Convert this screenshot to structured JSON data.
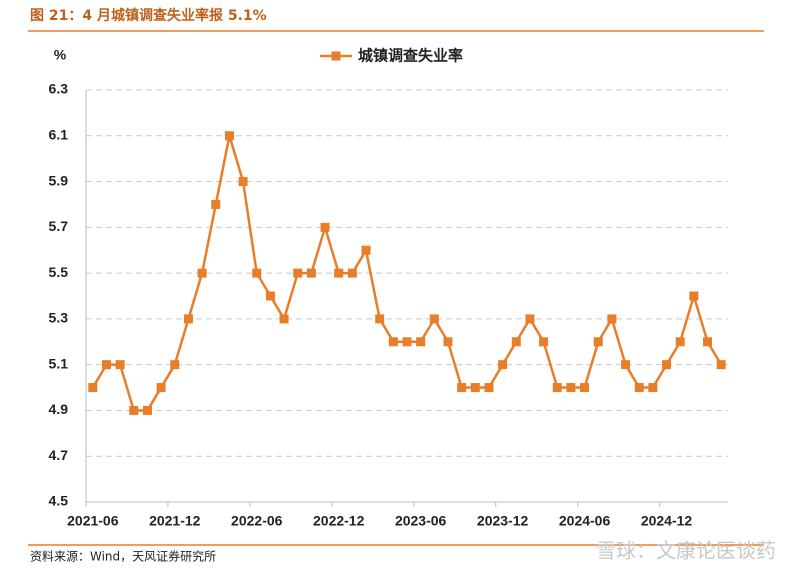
{
  "chart_data": {
    "type": "line",
    "title": "图 21：4 月城镇调查失业率报 5.1%",
    "y_unit": "%",
    "source": "资料来源：Wind，天风证券研究所",
    "watermark": "雪球：文康论医谈药",
    "categories": [
      "2021-06",
      null,
      null,
      null,
      null,
      null,
      "2021-12",
      null,
      null,
      null,
      null,
      null,
      "2022-06",
      null,
      null,
      null,
      null,
      null,
      "2022-12",
      null,
      null,
      null,
      null,
      null,
      "2023-06",
      null,
      null,
      null,
      null,
      null,
      "2023-12",
      null,
      null,
      null,
      null,
      null,
      "2024-06",
      null,
      null,
      null,
      null,
      null,
      "2024-12",
      null,
      null,
      null,
      null
    ],
    "series": [
      {
        "name": "城镇调查失业率",
        "color": "#e87d2a",
        "values": [
          5.0,
          5.1,
          5.1,
          4.9,
          4.9,
          5.0,
          5.1,
          5.3,
          5.5,
          5.8,
          6.1,
          5.9,
          5.5,
          5.4,
          5.3,
          5.5,
          5.5,
          5.7,
          5.5,
          5.5,
          5.6,
          5.3,
          5.2,
          5.2,
          5.2,
          5.3,
          5.2,
          5.0,
          5.0,
          5.0,
          5.1,
          5.2,
          5.3,
          5.2,
          5.0,
          5.0,
          5.0,
          5.2,
          5.3,
          5.1,
          5.0,
          5.0,
          5.1,
          5.2,
          5.4,
          5.2,
          5.1
        ]
      }
    ],
    "ylim": [
      4.5,
      6.3
    ],
    "yticks": [
      4.5,
      4.7,
      4.9,
      5.1,
      5.3,
      5.5,
      5.7,
      5.9,
      6.1,
      6.3
    ],
    "grid": true,
    "legend": "top"
  }
}
